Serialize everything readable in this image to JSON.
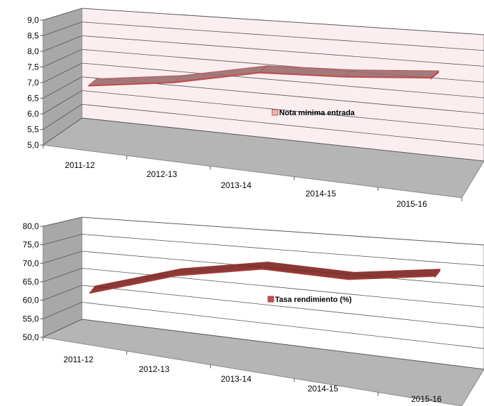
{
  "chart_data": [
    {
      "type": "line",
      "style": "3d-ribbon",
      "categories": [
        "2011-12",
        "2012-13",
        "2013-14",
        "2014-15",
        "2015-16"
      ],
      "series": [
        {
          "name": "Nota mínima entrada",
          "values": [
            6.2,
            6.6,
            7.2,
            7.3,
            7.5
          ]
        }
      ],
      "ylim": [
        5.0,
        9.0
      ],
      "yticks": [
        "5,0",
        "5,5",
        "6,0",
        "6,5",
        "7,0",
        "7,5",
        "8,0",
        "8,5",
        "9,0"
      ],
      "grid": true,
      "legend": "center",
      "colors": {
        "back_wall": "#fbeef0",
        "side_wall": "#a8a8a8",
        "floor": "#b5b5b5",
        "ribbon_top": "#9a6c6e",
        "ribbon_front": "#c0504d",
        "legend_swatch": "#e6b9b8"
      }
    },
    {
      "type": "line",
      "style": "3d-ribbon",
      "categories": [
        "2011-12",
        "2012-13",
        "2013-14",
        "2014-15",
        "2015-16"
      ],
      "series": [
        {
          "name": "Tasa  rendimiento  (%)",
          "values": [
            58.0,
            65.5,
            69.5,
            68.8,
            71.5
          ]
        }
      ],
      "ylim": [
        50.0,
        80.0
      ],
      "yticks": [
        "50,0",
        "55,0",
        "60,0",
        "65,0",
        "70,0",
        "75,0",
        "80,0"
      ],
      "grid": true,
      "legend": "center",
      "colors": {
        "back_wall": "#ffffff",
        "side_wall": "#a8a8a8",
        "floor": "#b5b5b5",
        "ribbon_top": "#7b2320",
        "ribbon_front": "#a53a36",
        "legend_swatch": "#c0504d"
      }
    }
  ]
}
